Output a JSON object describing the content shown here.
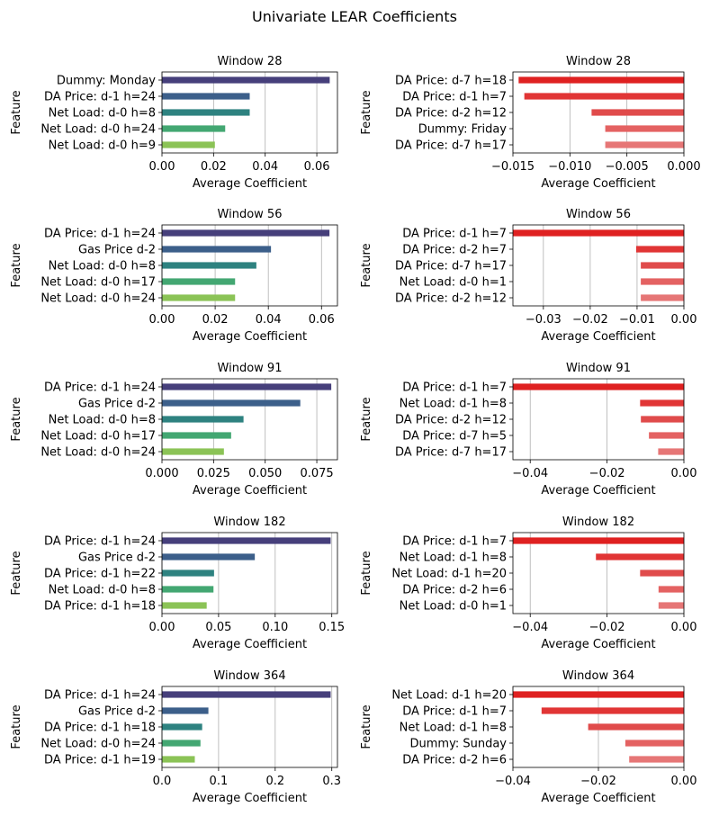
{
  "title": "Univariate LEAR Coefficients",
  "chart_data": [
    {
      "type": "bar",
      "orientation": "horizontal",
      "title": "Window 28",
      "xlabel": "Average Coefficient",
      "ylabel": "Feature",
      "xlim": [
        0,
        0.068
      ],
      "xticks": [
        0,
        0.02,
        0.04,
        0.06
      ],
      "xtick_labels": [
        "0.00",
        "0.02",
        "0.04",
        "0.06"
      ],
      "grid": "x",
      "categories": [
        "Dummy: Monday",
        "DA Price:  d-1 h=24",
        "Net Load:  d-0 h=8",
        "Net Load:  d-0 h=24",
        "Net Load:  d-0 h=9"
      ],
      "values": [
        0.065,
        0.034,
        0.034,
        0.0245,
        0.0205
      ],
      "colors": [
        "#463f7b",
        "#3c5f8a",
        "#2e8280",
        "#43a772",
        "#8bc356"
      ]
    },
    {
      "type": "bar",
      "orientation": "horizontal",
      "title": "Window 28",
      "xlabel": "Average Coefficient",
      "ylabel": "Feature",
      "xlim": [
        -0.015,
        0
      ],
      "xticks": [
        -0.015,
        -0.01,
        -0.005,
        0
      ],
      "xtick_labels": [
        "−0.015",
        "−0.010",
        "−0.005",
        "0.000"
      ],
      "grid": "x",
      "categories": [
        "DA Price:  d-7 h=18",
        "DA Price:  d-1 h=7",
        "DA Price:  d-2 h=12",
        "Dummy: Friday",
        "DA Price:  d-7 h=17"
      ],
      "values": [
        -0.0145,
        -0.014,
        -0.0081,
        -0.0069,
        -0.0069
      ],
      "colors": [
        "#df2121",
        "#e13535",
        "#e04b4b",
        "#e46262",
        "#e67676"
      ]
    },
    {
      "type": "bar",
      "orientation": "horizontal",
      "title": "Window 56",
      "xlabel": "Average Coefficient",
      "ylabel": "Feature",
      "xlim": [
        0,
        0.066
      ],
      "xticks": [
        0,
        0.02,
        0.04,
        0.06
      ],
      "xtick_labels": [
        "0.00",
        "0.02",
        "0.04",
        "0.06"
      ],
      "grid": "x",
      "categories": [
        "DA Price:  d-1 h=24",
        "Gas Price d-2",
        "Net Load:  d-0 h=8",
        "Net Load:  d-0 h=17",
        "Net Load:  d-0 h=24"
      ],
      "values": [
        0.063,
        0.041,
        0.0355,
        0.0275,
        0.0275
      ],
      "colors": [
        "#463f7b",
        "#3c5f8a",
        "#2e8280",
        "#43a772",
        "#8bc356"
      ]
    },
    {
      "type": "bar",
      "orientation": "horizontal",
      "title": "Window 56",
      "xlabel": "Average Coefficient",
      "ylabel": "Feature",
      "xlim": [
        -0.0365,
        0
      ],
      "xticks": [
        -0.03,
        -0.02,
        -0.01,
        0
      ],
      "xtick_labels": [
        "−0.03",
        "−0.02",
        "−0.01",
        "0.00"
      ],
      "grid": "x",
      "categories": [
        "DA Price:  d-1 h=7",
        "DA Price:  d-2 h=7",
        "DA Price:  d-7 h=17",
        "Net Load:  d-0 h=1",
        "DA Price:  d-2 h=12"
      ],
      "values": [
        -0.0365,
        -0.0102,
        -0.0092,
        -0.0092,
        -0.0092
      ],
      "colors": [
        "#df2121",
        "#e13535",
        "#e04b4b",
        "#e46262",
        "#e67676"
      ]
    },
    {
      "type": "bar",
      "orientation": "horizontal",
      "title": "Window 91",
      "xlabel": "Average Coefficient",
      "ylabel": "Feature",
      "xlim": [
        0,
        0.085
      ],
      "xticks": [
        0,
        0.025,
        0.05,
        0.075
      ],
      "xtick_labels": [
        "0.000",
        "0.025",
        "0.050",
        "0.075"
      ],
      "grid": "x",
      "categories": [
        "DA Price:  d-1 h=24",
        "Gas Price d-2",
        "Net Load:  d-0 h=8",
        "Net Load:  d-0 h=17",
        "Net Load:  d-0 h=24"
      ],
      "values": [
        0.082,
        0.067,
        0.0395,
        0.0335,
        0.03
      ],
      "colors": [
        "#463f7b",
        "#3c5f8a",
        "#2e8280",
        "#43a772",
        "#8bc356"
      ]
    },
    {
      "type": "bar",
      "orientation": "horizontal",
      "title": "Window 91",
      "xlabel": "Average Coefficient",
      "ylabel": "Feature",
      "xlim": [
        -0.0445,
        0
      ],
      "xticks": [
        -0.04,
        -0.02,
        0
      ],
      "xtick_labels": [
        "−0.04",
        "−0.02",
        "0.00"
      ],
      "grid": "x",
      "categories": [
        "DA Price:  d-1 h=7",
        "Net Load:  d-1 h=8",
        "DA Price:  d-2 h=12",
        "DA Price:  d-7 h=5",
        "DA Price:  d-7 h=17"
      ],
      "values": [
        -0.0445,
        -0.0114,
        -0.0112,
        -0.0091,
        -0.0067
      ],
      "colors": [
        "#df2121",
        "#e13535",
        "#e04b4b",
        "#e46262",
        "#e67676"
      ]
    },
    {
      "type": "bar",
      "orientation": "horizontal",
      "title": "Window 182",
      "xlabel": "Average Coefficient",
      "ylabel": "Feature",
      "xlim": [
        0,
        0.155
      ],
      "xticks": [
        0,
        0.05,
        0.1,
        0.15
      ],
      "xtick_labels": [
        "0.00",
        "0.05",
        "0.10",
        "0.15"
      ],
      "grid": "x",
      "categories": [
        "DA Price:  d-1 h=24",
        "Gas Price d-2",
        "DA Price:  d-1 h=22",
        "Net Load:  d-0 h=8",
        "DA Price:  d-1 h=18"
      ],
      "values": [
        0.149,
        0.082,
        0.046,
        0.0455,
        0.0395
      ],
      "colors": [
        "#463f7b",
        "#3c5f8a",
        "#2e8280",
        "#43a772",
        "#8bc356"
      ]
    },
    {
      "type": "bar",
      "orientation": "horizontal",
      "title": "Window 182",
      "xlabel": "Average Coefficient",
      "ylabel": "Feature",
      "xlim": [
        -0.0445,
        0
      ],
      "xticks": [
        -0.04,
        -0.02,
        0
      ],
      "xtick_labels": [
        "−0.04",
        "−0.02",
        "0.00"
      ],
      "grid": "x",
      "categories": [
        "DA Price:  d-1 h=7",
        "Net Load:  d-1 h=8",
        "Net Load:  d-1 h=20",
        "DA Price:  d-2 h=6",
        "Net Load:  d-0 h=1"
      ],
      "values": [
        -0.0445,
        -0.0229,
        -0.0114,
        -0.0066,
        -0.0066
      ],
      "colors": [
        "#df2121",
        "#e13535",
        "#e04b4b",
        "#e46262",
        "#e67676"
      ]
    },
    {
      "type": "bar",
      "orientation": "horizontal",
      "title": "Window 364",
      "xlabel": "Average Coefficient",
      "ylabel": "Feature",
      "xlim": [
        0,
        0.31
      ],
      "xticks": [
        0,
        0.1,
        0.2,
        0.3
      ],
      "xtick_labels": [
        "0.0",
        "0.1",
        "0.2",
        "0.3"
      ],
      "grid": "x",
      "categories": [
        "DA Price:  d-1 h=24",
        "Gas Price d-2",
        "DA Price:  d-1 h=18",
        "Net Load:  d-0 h=24",
        "DA Price:  d-1 h=19"
      ],
      "values": [
        0.298,
        0.082,
        0.071,
        0.068,
        0.058
      ],
      "colors": [
        "#463f7b",
        "#3c5f8a",
        "#2e8280",
        "#43a772",
        "#8bc356"
      ]
    },
    {
      "type": "bar",
      "orientation": "horizontal",
      "title": "Window 364",
      "xlabel": "Average Coefficient",
      "ylabel": "Feature",
      "xlim": [
        -0.04,
        0
      ],
      "xticks": [
        -0.04,
        -0.02,
        0
      ],
      "xtick_labels": [
        "−0.04",
        "−0.02",
        "0.00"
      ],
      "grid": "x",
      "categories": [
        "Net Load:  d-1 h=20",
        "DA Price:  d-1 h=7",
        "Net Load:  d-1 h=8",
        "Dummy: Sunday",
        "DA Price:  d-2 h=6"
      ],
      "values": [
        -0.04,
        -0.0333,
        -0.0224,
        -0.0137,
        -0.0128
      ],
      "colors": [
        "#df2121",
        "#e13535",
        "#e04b4b",
        "#e46262",
        "#e67676"
      ]
    }
  ]
}
